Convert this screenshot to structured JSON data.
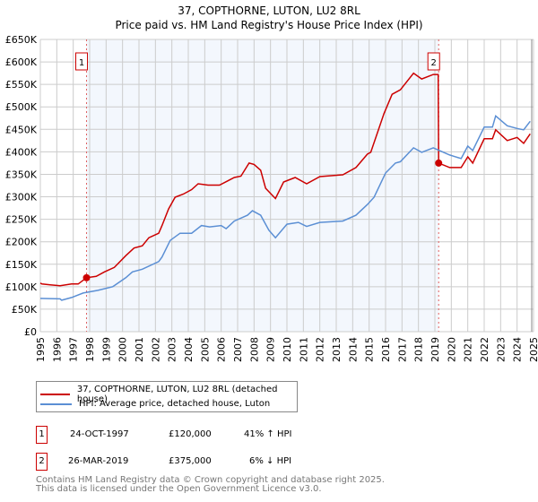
{
  "chart_data": {
    "type": "line",
    "title": "37, COPTHORNE, LUTON, LU2 8RL",
    "subtitle": "Price paid vs. HM Land Registry's House Price Index (HPI)",
    "xlim": [
      1995,
      2025
    ],
    "ylim": [
      0,
      650000
    ],
    "x_ticks": [
      "1995",
      "1996",
      "1997",
      "1998",
      "1999",
      "2000",
      "2001",
      "2002",
      "2003",
      "2004",
      "2005",
      "2006",
      "2007",
      "2008",
      "2009",
      "2010",
      "2011",
      "2012",
      "2013",
      "2014",
      "2015",
      "2016",
      "2017",
      "2018",
      "2019",
      "2020",
      "2021",
      "2022",
      "2023",
      "2024",
      "2025"
    ],
    "y_ticks": [
      {
        "v": 0,
        "label": "£0"
      },
      {
        "v": 50000,
        "label": "£50K"
      },
      {
        "v": 100000,
        "label": "£100K"
      },
      {
        "v": 150000,
        "label": "£150K"
      },
      {
        "v": 200000,
        "label": "£200K"
      },
      {
        "v": 250000,
        "label": "£250K"
      },
      {
        "v": 300000,
        "label": "£300K"
      },
      {
        "v": 350000,
        "label": "£350K"
      },
      {
        "v": 400000,
        "label": "£400K"
      },
      {
        "v": 450000,
        "label": "£450K"
      },
      {
        "v": 500000,
        "label": "£500K"
      },
      {
        "v": 550000,
        "label": "£550K"
      },
      {
        "v": 600000,
        "label": "£600K"
      },
      {
        "v": 650000,
        "label": "£650K"
      }
    ],
    "grid": true,
    "shaded_range": [
      1997.81,
      2019.23
    ],
    "series": [
      {
        "name": "37, COPTHORNE, LUTON, LU2 8RL (detached house)",
        "color": "#cc0000",
        "points": [
          [
            1995,
            108
          ],
          [
            1995.1,
            106
          ],
          [
            1995.6,
            104
          ],
          [
            1996.2,
            102
          ],
          [
            1996.9,
            106
          ],
          [
            1997.3,
            106
          ],
          [
            1997.81,
            120
          ],
          [
            1998.4,
            123
          ],
          [
            1998.9,
            133
          ],
          [
            1999.5,
            143
          ],
          [
            2000.2,
            169
          ],
          [
            2000.7,
            186
          ],
          [
            2001.2,
            191
          ],
          [
            2001.6,
            209
          ],
          [
            2002.2,
            219
          ],
          [
            2002.4,
            236
          ],
          [
            2002.8,
            273
          ],
          [
            2003.2,
            299
          ],
          [
            2003.7,
            306
          ],
          [
            2004.2,
            316
          ],
          [
            2004.6,
            329
          ],
          [
            2005.2,
            326
          ],
          [
            2005.9,
            326
          ],
          [
            2006.8,
            343
          ],
          [
            2007.2,
            346
          ],
          [
            2007.7,
            375
          ],
          [
            2008,
            372
          ],
          [
            2008.4,
            359
          ],
          [
            2008.7,
            319
          ],
          [
            2009.3,
            296
          ],
          [
            2009.8,
            333
          ],
          [
            2010.5,
            343
          ],
          [
            2011.2,
            329
          ],
          [
            2012,
            345
          ],
          [
            2013.4,
            349
          ],
          [
            2014.2,
            365
          ],
          [
            2014.9,
            395
          ],
          [
            2015.1,
            399
          ],
          [
            2015.9,
            485
          ],
          [
            2016.4,
            528
          ],
          [
            2016.9,
            538
          ],
          [
            2017.7,
            575
          ],
          [
            2018.2,
            562
          ],
          [
            2018.9,
            572
          ],
          [
            2019.2,
            572
          ],
          [
            2019.23,
            375
          ],
          [
            2019.9,
            365
          ],
          [
            2020.6,
            365
          ],
          [
            2021,
            389
          ],
          [
            2021.3,
            375
          ],
          [
            2022,
            429
          ],
          [
            2022.5,
            429
          ],
          [
            2022.7,
            449
          ],
          [
            2023.4,
            425
          ],
          [
            2024,
            432
          ],
          [
            2024.4,
            419
          ],
          [
            2024.8,
            440
          ]
        ]
      },
      {
        "name": "HPI: Average price, detached house, Luton",
        "color": "#5b8fd4",
        "points": [
          [
            1995,
            74
          ],
          [
            1996.2,
            73
          ],
          [
            1996.3,
            70
          ],
          [
            1996.9,
            76
          ],
          [
            1997.6,
            86
          ],
          [
            1998.5,
            92
          ],
          [
            1999.4,
            100
          ],
          [
            2000.2,
            120
          ],
          [
            2000.6,
            133
          ],
          [
            2001.2,
            139
          ],
          [
            2002.2,
            156
          ],
          [
            2002.4,
            166
          ],
          [
            2002.9,
            203
          ],
          [
            2003.5,
            219
          ],
          [
            2004.2,
            219
          ],
          [
            2004.8,
            236
          ],
          [
            2005.3,
            233
          ],
          [
            2006,
            236
          ],
          [
            2006.3,
            229
          ],
          [
            2006.8,
            246
          ],
          [
            2007.6,
            259
          ],
          [
            2007.9,
            269
          ],
          [
            2008.4,
            259
          ],
          [
            2008.9,
            226
          ],
          [
            2009.3,
            209
          ],
          [
            2010,
            239
          ],
          [
            2010.7,
            243
          ],
          [
            2011.2,
            234
          ],
          [
            2012,
            243
          ],
          [
            2013.4,
            246
          ],
          [
            2014.2,
            259
          ],
          [
            2014.9,
            283
          ],
          [
            2015.3,
            299
          ],
          [
            2016,
            353
          ],
          [
            2016.6,
            375
          ],
          [
            2016.9,
            378
          ],
          [
            2017.7,
            409
          ],
          [
            2018.2,
            399
          ],
          [
            2018.9,
            409
          ],
          [
            2019.9,
            393
          ],
          [
            2020.6,
            385
          ],
          [
            2021,
            413
          ],
          [
            2021.3,
            403
          ],
          [
            2022,
            455
          ],
          [
            2022.5,
            455
          ],
          [
            2022.7,
            480
          ],
          [
            2023.4,
            458
          ],
          [
            2024,
            452
          ],
          [
            2024.4,
            449
          ],
          [
            2024.8,
            468
          ]
        ]
      }
    ],
    "sales": [
      {
        "label": "1",
        "x": 1997.81,
        "y": 120
      },
      {
        "label": "2",
        "x": 2019.23,
        "y": 375
      }
    ]
  },
  "legend": {
    "red": "37, COPTHORNE, LUTON, LU2 8RL (detached house)",
    "blue": "HPI: Average price, detached house, Luton"
  },
  "transactions": [
    {
      "num": "1",
      "date": "24-OCT-1997",
      "price": "£120,000",
      "hpi": "41% ↑ HPI"
    },
    {
      "num": "2",
      "date": "26-MAR-2019",
      "price": "£375,000",
      "hpi": "6% ↓ HPI"
    }
  ],
  "footer": {
    "line1": "Contains HM Land Registry data © Crown copyright and database right 2025.",
    "line2": "This data is licensed under the Open Government Licence v3.0."
  }
}
